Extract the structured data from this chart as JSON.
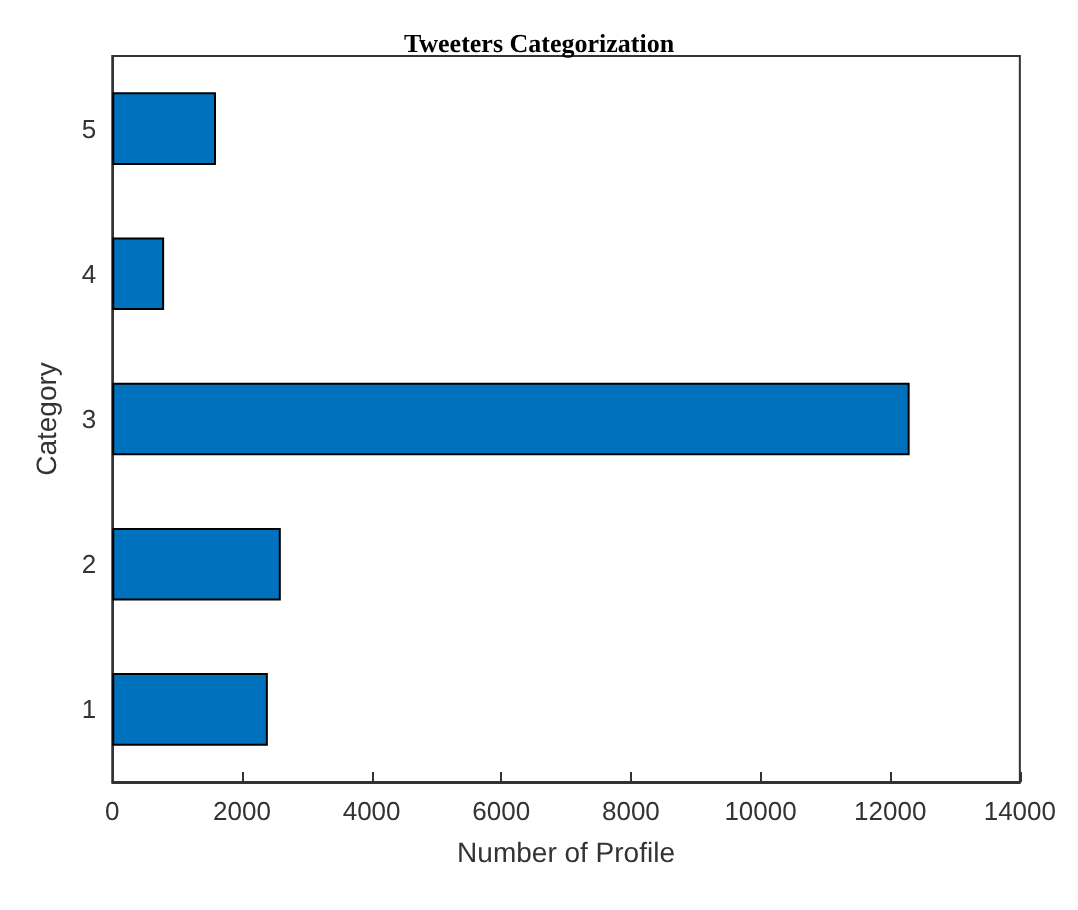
{
  "chart_data": {
    "type": "bar",
    "orientation": "horizontal",
    "title": "Tweeters Categorization",
    "xlabel": "Number of Profile",
    "ylabel": "Category",
    "categories": [
      "5",
      "4",
      "3",
      "2",
      "1"
    ],
    "values": [
      1600,
      800,
      12300,
      2600,
      2400
    ],
    "color": "#0072bd",
    "xlim": [
      0,
      14000
    ],
    "xticks": [
      0,
      2000,
      4000,
      6000,
      8000,
      10000,
      12000,
      14000
    ],
    "grid": false
  }
}
